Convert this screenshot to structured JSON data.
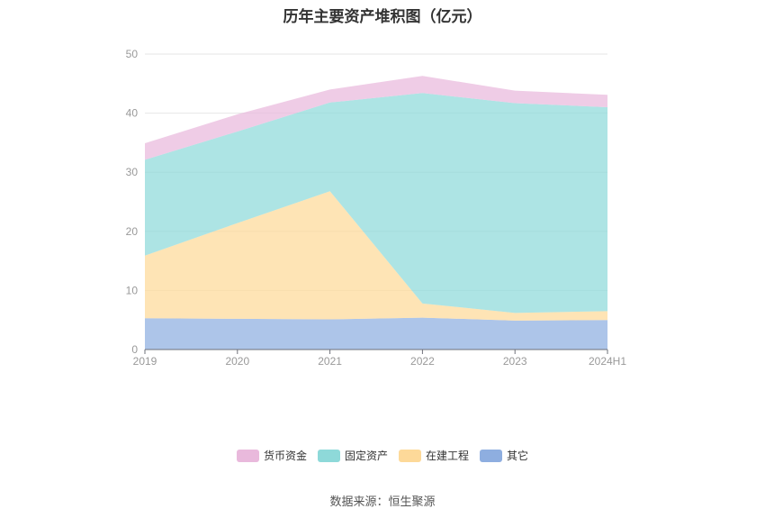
{
  "chart_data": {
    "type": "area",
    "stacked": true,
    "title": "历年主要资产堆积图（亿元）",
    "xlabel": "",
    "ylabel": "",
    "ylim": [
      0,
      50
    ],
    "yticks": [
      0,
      10,
      20,
      30,
      40,
      50
    ],
    "categories": [
      "2019",
      "2020",
      "2021",
      "2022",
      "2023",
      "2024H1"
    ],
    "series": [
      {
        "name": "其它",
        "color": "#8eaee0",
        "values": [
          5.3,
          5.2,
          5.1,
          5.4,
          4.9,
          5.0
        ]
      },
      {
        "name": "在建工程",
        "color": "#fdd999",
        "values": [
          10.6,
          16.2,
          21.7,
          2.4,
          1.3,
          1.5
        ]
      },
      {
        "name": "固定资产",
        "color": "#8ed9d9",
        "values": [
          16.2,
          15.5,
          15.0,
          35.6,
          35.5,
          34.5
        ]
      },
      {
        "name": "货币资金",
        "color": "#e9b9dc",
        "values": [
          2.8,
          2.9,
          2.2,
          2.9,
          2.1,
          2.1
        ]
      }
    ],
    "legend_order": [
      "货币资金",
      "固定资产",
      "在建工程",
      "其它"
    ],
    "grid": true,
    "legend_position": "bottom"
  },
  "source": "数据来源：恒生聚源"
}
